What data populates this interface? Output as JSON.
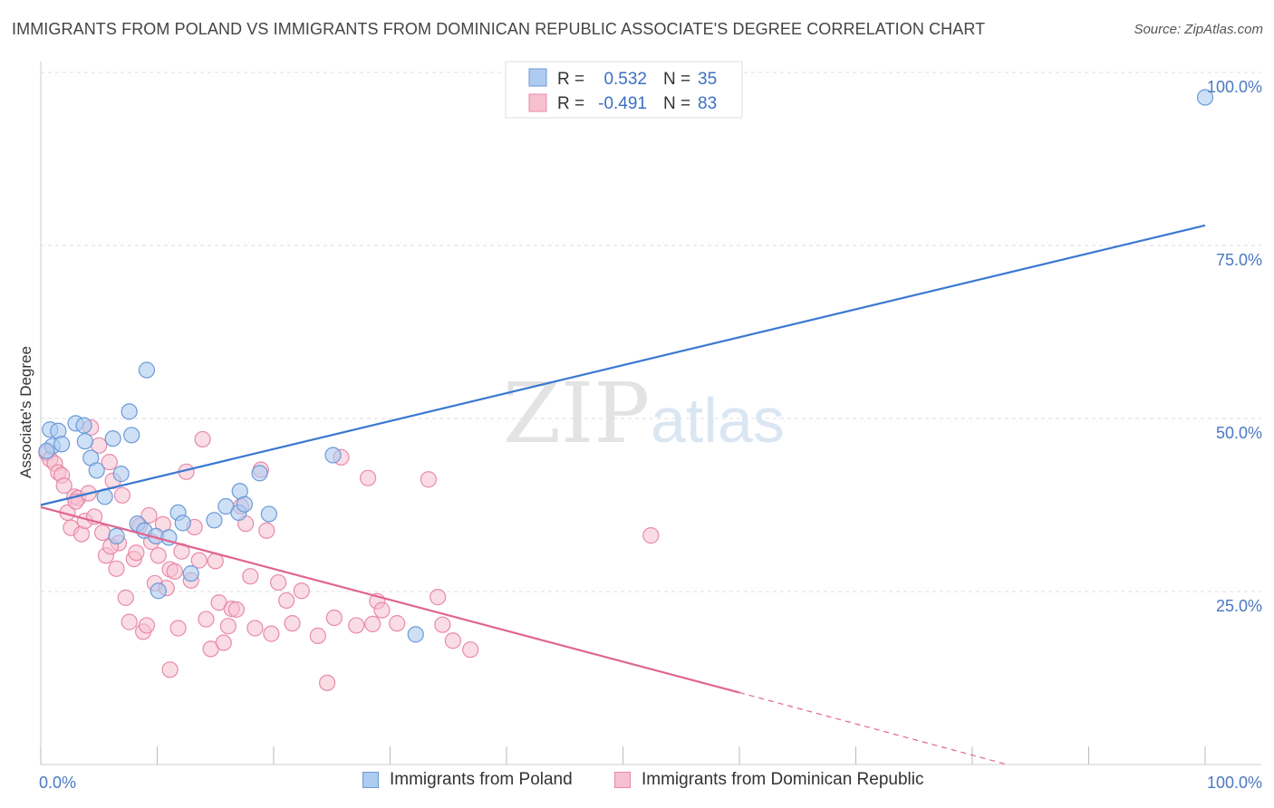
{
  "header": {
    "title": "IMMIGRANTS FROM POLAND VS IMMIGRANTS FROM DOMINICAN REPUBLIC ASSOCIATE'S DEGREE CORRELATION CHART",
    "source": "Source: ZipAtlas.com"
  },
  "watermark": {
    "zip": "ZIP",
    "atlas": "atlas"
  },
  "legend": {
    "rows": [
      {
        "r_label": "R =",
        "r_value": "0.532",
        "n_label": "N =",
        "n_value": "35"
      },
      {
        "r_label": "R =",
        "r_value": "-0.491",
        "n_label": "N =",
        "n_value": "83"
      }
    ]
  },
  "bottom_legend": {
    "items": [
      {
        "label": "Immigrants from Poland"
      },
      {
        "label": "Immigrants from Dominican Republic"
      }
    ]
  },
  "colors": {
    "poland_fill": "#aecbf0",
    "poland_stroke": "#6b9ad8",
    "poland_line": "#3a78d0",
    "dominican_fill": "#f6c0d0",
    "dominican_stroke": "#e98aa8",
    "dominican_line": "#e0658f",
    "grid": "#dddddd",
    "tick_label": "#4a78c2"
  },
  "chart_data": {
    "type": "scatter",
    "title": "IMMIGRANTS FROM POLAND VS IMMIGRANTS FROM DOMINICAN REPUBLIC ASSOCIATE'S DEGREE CORRELATION CHART",
    "xlabel": "",
    "ylabel": "Associate's Degree",
    "xlim": [
      0,
      100
    ],
    "ylim": [
      0,
      100
    ],
    "x_tick_labels": [
      "0.0%",
      "100.0%"
    ],
    "y_tick_labels": [
      "100.0%",
      "75.0%",
      "50.0%",
      "25.0%"
    ],
    "y_tick_values": [
      100,
      75,
      50,
      25
    ],
    "grid": true,
    "legend_position": "top-center",
    "series": [
      {
        "name": "Immigrants from Poland",
        "r": 0.532,
        "n": 35,
        "trend": {
          "x0": 0,
          "y0": 37.5,
          "x1": 100,
          "y1": 77.9
        },
        "points": [
          [
            0.8,
            48.4
          ],
          [
            1.5,
            48.2
          ],
          [
            1.0,
            46.0
          ],
          [
            0.5,
            45.3
          ],
          [
            1.8,
            46.3
          ],
          [
            3.0,
            49.3
          ],
          [
            3.7,
            49.0
          ],
          [
            3.8,
            46.7
          ],
          [
            4.3,
            44.3
          ],
          [
            4.8,
            42.5
          ],
          [
            5.5,
            38.7
          ],
          [
            6.2,
            47.1
          ],
          [
            6.5,
            33.0
          ],
          [
            6.9,
            42.0
          ],
          [
            7.6,
            51.0
          ],
          [
            7.8,
            47.6
          ],
          [
            9.1,
            57.0
          ],
          [
            8.3,
            34.8
          ],
          [
            8.9,
            33.8
          ],
          [
            9.9,
            33.0
          ],
          [
            10.1,
            25.1
          ],
          [
            11.0,
            32.8
          ],
          [
            11.8,
            36.4
          ],
          [
            12.2,
            34.9
          ],
          [
            12.9,
            27.6
          ],
          [
            14.9,
            35.3
          ],
          [
            15.9,
            37.3
          ],
          [
            17.0,
            36.4
          ],
          [
            17.1,
            39.5
          ],
          [
            17.5,
            37.6
          ],
          [
            18.8,
            42.1
          ],
          [
            19.6,
            36.2
          ],
          [
            25.1,
            44.7
          ],
          [
            32.2,
            18.8
          ],
          [
            100.0,
            96.4
          ]
        ]
      },
      {
        "name": "Immigrants from Dominican Republic",
        "r": -0.491,
        "n": 83,
        "trend": {
          "x0": 0,
          "y0": 37.2,
          "x1": 60,
          "y1": 10.4,
          "dash_to_x": 83,
          "dash_to_y": 0
        },
        "points": [
          [
            0.5,
            45.0
          ],
          [
            0.8,
            44.1
          ],
          [
            1.2,
            43.5
          ],
          [
            1.5,
            42.2
          ],
          [
            1.8,
            41.8
          ],
          [
            2.0,
            40.3
          ],
          [
            2.3,
            36.4
          ],
          [
            2.6,
            34.2
          ],
          [
            2.9,
            38.7
          ],
          [
            3.2,
            38.5
          ],
          [
            3.5,
            33.3
          ],
          [
            3.8,
            35.2
          ],
          [
            4.1,
            39.2
          ],
          [
            4.3,
            48.7
          ],
          [
            4.6,
            35.8
          ],
          [
            5.0,
            46.1
          ],
          [
            5.3,
            33.5
          ],
          [
            5.6,
            30.2
          ],
          [
            5.9,
            43.7
          ],
          [
            6.2,
            41.0
          ],
          [
            6.5,
            28.3
          ],
          [
            6.7,
            32.0
          ],
          [
            7.0,
            38.9
          ],
          [
            7.3,
            24.1
          ],
          [
            7.6,
            20.6
          ],
          [
            8.0,
            29.7
          ],
          [
            8.2,
            30.6
          ],
          [
            8.5,
            34.5
          ],
          [
            8.8,
            19.2
          ],
          [
            9.1,
            20.1
          ],
          [
            9.5,
            32.2
          ],
          [
            9.8,
            26.2
          ],
          [
            10.1,
            30.2
          ],
          [
            10.5,
            34.7
          ],
          [
            10.8,
            25.5
          ],
          [
            11.1,
            28.2
          ],
          [
            11.5,
            27.9
          ],
          [
            11.8,
            19.7
          ],
          [
            12.1,
            30.8
          ],
          [
            12.5,
            42.3
          ],
          [
            12.9,
            26.6
          ],
          [
            13.2,
            34.3
          ],
          [
            13.6,
            29.5
          ],
          [
            13.9,
            47.0
          ],
          [
            14.2,
            21.0
          ],
          [
            14.6,
            16.7
          ],
          [
            15.0,
            29.4
          ],
          [
            15.3,
            23.4
          ],
          [
            15.7,
            17.6
          ],
          [
            16.1,
            20.0
          ],
          [
            16.4,
            22.5
          ],
          [
            16.8,
            22.4
          ],
          [
            17.2,
            37.3
          ],
          [
            17.6,
            34.8
          ],
          [
            18.0,
            27.2
          ],
          [
            18.4,
            19.7
          ],
          [
            18.9,
            42.6
          ],
          [
            19.4,
            33.8
          ],
          [
            19.8,
            18.9
          ],
          [
            20.4,
            26.3
          ],
          [
            21.1,
            23.7
          ],
          [
            21.6,
            20.4
          ],
          [
            22.4,
            25.1
          ],
          [
            23.8,
            18.6
          ],
          [
            24.6,
            11.8
          ],
          [
            25.2,
            21.2
          ],
          [
            25.8,
            44.4
          ],
          [
            27.1,
            20.1
          ],
          [
            28.1,
            41.4
          ],
          [
            28.5,
            20.3
          ],
          [
            28.9,
            23.6
          ],
          [
            29.3,
            22.3
          ],
          [
            30.6,
            20.4
          ],
          [
            33.3,
            41.2
          ],
          [
            34.1,
            24.2
          ],
          [
            34.5,
            20.2
          ],
          [
            35.4,
            17.9
          ],
          [
            36.9,
            16.6
          ],
          [
            52.4,
            33.1
          ],
          [
            11.1,
            13.7
          ],
          [
            3.0,
            38.0
          ],
          [
            6.0,
            31.5
          ],
          [
            9.3,
            36.0
          ]
        ]
      }
    ]
  }
}
